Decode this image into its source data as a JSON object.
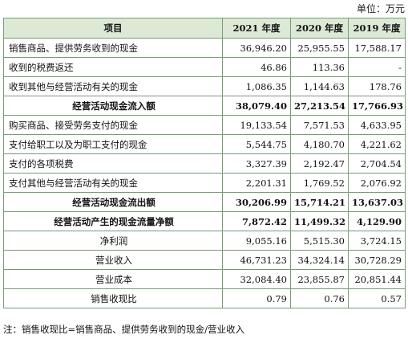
{
  "unit_label": "单位：万元",
  "headers": [
    "项目",
    "2021 年度",
    "2020 年度",
    "2019 年度"
  ],
  "rows": [
    {
      "label": "销售商品、提供劳务收到的现金",
      "v2021": "36,946.20",
      "v2020": "25,955.55",
      "v2019": "17,588.17"
    },
    {
      "label": "收到的税费返还",
      "v2021": "46.86",
      "v2020": "113.36",
      "v2019": "-"
    },
    {
      "label": "收到其他与经营活动有关的现金",
      "v2021": "1,086.35",
      "v2020": "1,144.63",
      "v2019": "178.76"
    },
    {
      "label": "经营活动现金流入额",
      "v2021": "38,079.40",
      "v2020": "27,213.54",
      "v2019": "17,766.93"
    },
    {
      "label": "购买商品、接受劳务支付的现金",
      "v2021": "19,133.54",
      "v2020": "7,571.53",
      "v2019": "4,633.95"
    },
    {
      "label": "支付给职工以及为职工支付的现金",
      "v2021": "5,544.75",
      "v2020": "4,180.70",
      "v2019": "4,221.62"
    },
    {
      "label": "支付的各项税费",
      "v2021": "3,327.39",
      "v2020": "2,192.47",
      "v2019": "2,704.54"
    },
    {
      "label": "支付其他与经营活动有关的现金",
      "v2021": "2,201.31",
      "v2020": "1,769.52",
      "v2019": "2,076.92"
    },
    {
      "label": "经营活动现金流出额",
      "v2021": "30,206.99",
      "v2020": "15,714.21",
      "v2019": "13,637.03"
    },
    {
      "label": "经营活动产生的现金流量净额",
      "v2021": "7,872.42",
      "v2020": "11,499.32",
      "v2019": "4,129.90"
    },
    {
      "label": "净利润",
      "v2021": "9,055.16",
      "v2020": "5,515.30",
      "v2019": "3,724.15"
    },
    {
      "label": "营业收入",
      "v2021": "46,731.23",
      "v2020": "34,324.14",
      "v2019": "30,728.29"
    },
    {
      "label": "营业成本",
      "v2021": "32,084.40",
      "v2020": "23,855.87",
      "v2019": "20,851.44"
    },
    {
      "label": "销售收现比",
      "v2021": "0.79",
      "v2020": "0.76",
      "v2019": "0.57"
    }
  ],
  "note": "注：销售收现比=销售商品、提供劳务收到的现金/营业收入"
}
